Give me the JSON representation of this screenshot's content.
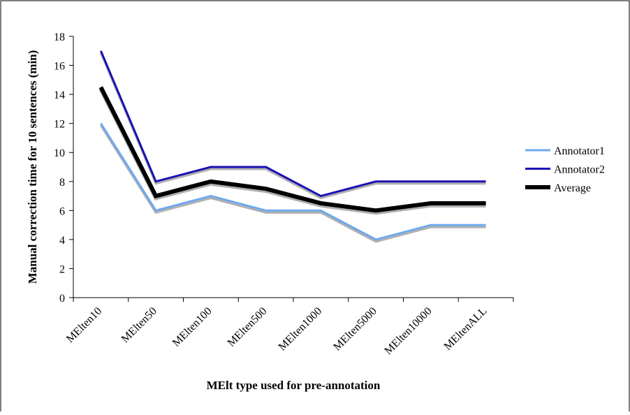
{
  "chart_data": {
    "type": "line",
    "x_label": "MElt type used for pre-annotation",
    "y_label": "Manual correction time for 10 sentences (min)",
    "categories": [
      "MElten10",
      "MElten50",
      "MElten100",
      "MElten500",
      "MElten1000",
      "MElten5000",
      "MElten10000",
      "MEltenALL"
    ],
    "series": [
      {
        "name": "Annotator1",
        "color": "#6fa8ee",
        "values": [
          12,
          6,
          7,
          6,
          6,
          4,
          5,
          5
        ]
      },
      {
        "name": "Annotator2",
        "color": "#1a10b4",
        "values": [
          17,
          8,
          9,
          9,
          7,
          8,
          8,
          8
        ]
      },
      {
        "name": "Average",
        "color": "#000000",
        "values": [
          14.5,
          7,
          8,
          7.5,
          6.5,
          6,
          6.5,
          6.5
        ]
      }
    ],
    "ylim": [
      0,
      18
    ],
    "yticks": [
      0,
      2,
      4,
      6,
      8,
      10,
      12,
      14,
      16,
      18
    ],
    "legend": "right"
  }
}
